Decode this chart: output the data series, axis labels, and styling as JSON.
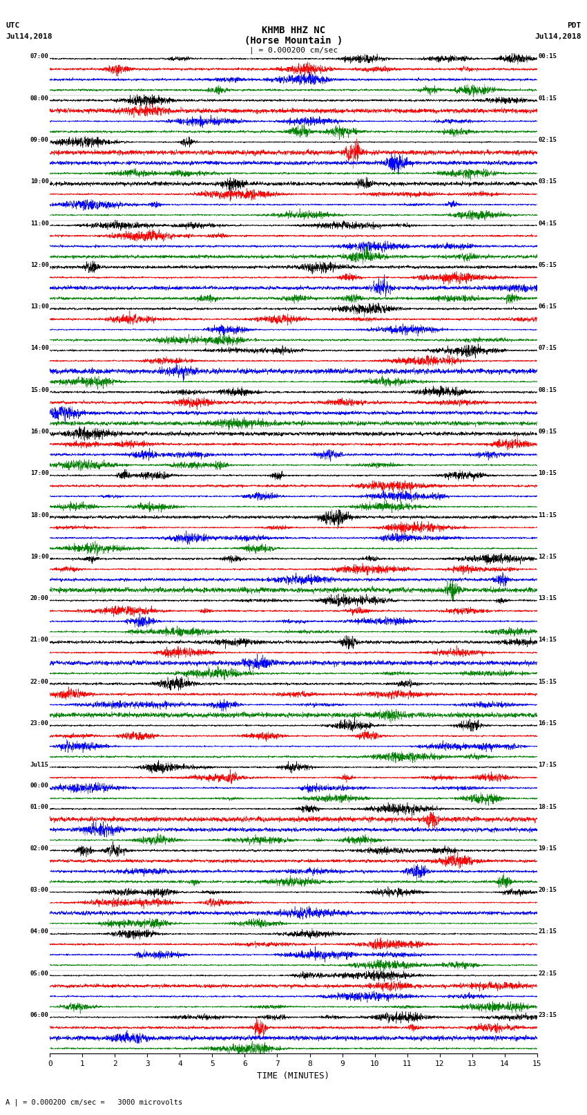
{
  "title_line1": "KHMB HHZ NC",
  "title_line2": "(Horse Mountain )",
  "title_scale": "| = 0.000200 cm/sec",
  "left_label_line1": "UTC",
  "left_label_line2": "Jul14,2018",
  "right_label_line1": "PDT",
  "right_label_line2": "Jul14,2018",
  "xlabel": "TIME (MINUTES)",
  "bottom_note": "A | = 0.000200 cm/sec =   3000 microvolts",
  "left_times": [
    "07:00",
    "08:00",
    "09:00",
    "10:00",
    "11:00",
    "12:00",
    "13:00",
    "14:00",
    "15:00",
    "16:00",
    "17:00",
    "18:00",
    "19:00",
    "20:00",
    "21:00",
    "22:00",
    "23:00",
    "Jul15\n00:00",
    "01:00",
    "02:00",
    "03:00",
    "04:00",
    "05:00",
    "06:00"
  ],
  "right_times": [
    "00:15",
    "01:15",
    "02:15",
    "03:15",
    "04:15",
    "05:15",
    "06:15",
    "07:15",
    "08:15",
    "09:15",
    "10:15",
    "11:15",
    "12:15",
    "13:15",
    "14:15",
    "15:15",
    "16:15",
    "17:15",
    "18:15",
    "19:15",
    "20:15",
    "21:15",
    "22:15",
    "23:15"
  ],
  "n_rows": 24,
  "traces_per_row": 4,
  "colors": [
    "black",
    "red",
    "blue",
    "green"
  ],
  "noise_seed": 42,
  "background_color": "white",
  "xticks": [
    0,
    1,
    2,
    3,
    4,
    5,
    6,
    7,
    8,
    9,
    10,
    11,
    12,
    13,
    14,
    15
  ],
  "xlim": [
    0,
    15
  ],
  "fig_width": 8.5,
  "fig_height": 16.13,
  "dpi": 100
}
